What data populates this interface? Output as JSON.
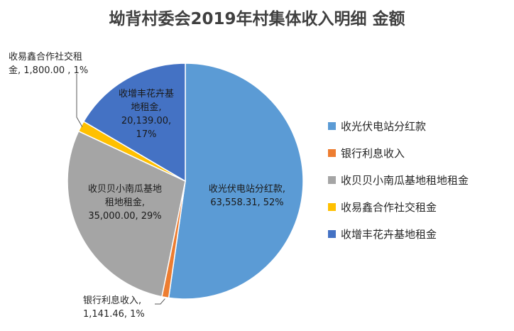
{
  "chart_data": {
    "type": "pie",
    "title": "坳背村委会2019年村集体收入明细 金额",
    "series": [
      {
        "name": "收光伏电站分红款",
        "value": 63558.31,
        "value_label": "63,558.31",
        "percent": 52,
        "color": "#5B9BD5"
      },
      {
        "name": "银行利息收入",
        "value": 1141.46,
        "value_label": "1,141.46",
        "percent": 1,
        "color": "#ED7D31"
      },
      {
        "name": "收贝贝小南瓜基地租地租金",
        "value": 35000.0,
        "value_label": "35,000.00",
        "percent": 29,
        "color": "#A5A5A5"
      },
      {
        "name": "收易鑫合作社交租金",
        "value": 1800.0,
        "value_label": "1,800.00",
        "percent": 1,
        "color": "#FFC000"
      },
      {
        "name": "收增丰花卉基地租金",
        "value": 20139.0,
        "value_label": "20,139.00",
        "percent": 17,
        "color": "#4472C4"
      }
    ],
    "legend_position": "right",
    "data_labels": [
      {
        "lines": [
          "收光伏电站分红款,",
          "63,558.31, 52%"
        ]
      },
      {
        "lines": [
          "银行利息收入,",
          "1,141.46, 1%"
        ]
      },
      {
        "lines": [
          "收贝贝小南瓜基地",
          "租地租金,",
          "35,000.00, 29%"
        ]
      },
      {
        "lines": [
          "收易鑫合作社交租",
          "金, 1,800.00 , 1%"
        ]
      },
      {
        "lines": [
          "收增丰花卉基",
          "地租金,",
          "20,139.00,",
          "17%"
        ]
      }
    ]
  }
}
